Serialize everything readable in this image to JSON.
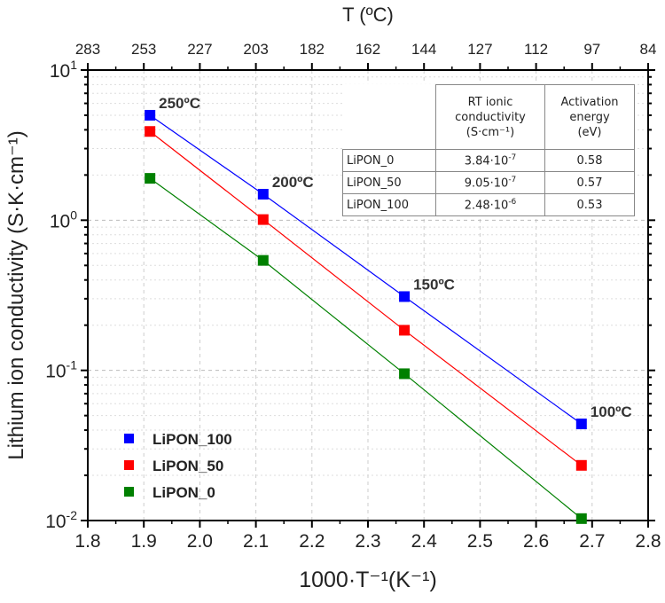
{
  "chart_data": {
    "type": "scatter",
    "title": "",
    "xlabel": "1000·T⁻¹(K⁻¹)",
    "ylabel": "Lithium ion conductivity (S·K·cm⁻¹)",
    "top_xlabel": "T (ºC)",
    "xlim": [
      1.8,
      2.8
    ],
    "ylim": [
      0.01,
      10
    ],
    "yscale": "log",
    "grid": true,
    "x_ticks": [
      "1.8",
      "1.9",
      "2.0",
      "2.1",
      "2.2",
      "2.3",
      "2.4",
      "2.5",
      "2.6",
      "2.7",
      "2.8"
    ],
    "top_ticks": [
      "283",
      "253",
      "227",
      "203",
      "182",
      "162",
      "144",
      "127",
      "112",
      "97",
      "84"
    ],
    "y_ticks": [
      {
        "base": "10",
        "exp": "1"
      },
      {
        "base": "10",
        "exp": "0"
      },
      {
        "base": "10",
        "exp": "-1"
      },
      {
        "base": "10",
        "exp": "-2"
      }
    ],
    "x": [
      1.911,
      2.113,
      2.365,
      2.681
    ],
    "series": [
      {
        "name": "LiPON_100",
        "color": "#0000ff",
        "values": [
          5.0,
          1.49,
          0.31,
          0.044
        ]
      },
      {
        "name": "LiPON_50",
        "color": "#ff0000",
        "values": [
          3.9,
          1.01,
          0.185,
          0.0233
        ]
      },
      {
        "name": "LiPON_0",
        "color": "#008000",
        "values": [
          1.9,
          0.54,
          0.095,
          0.0103
        ]
      }
    ],
    "annotations": [
      "250ºC",
      "200ºC",
      "150ºC",
      "100ºC"
    ],
    "legend_placement": "bottom-left"
  },
  "table": {
    "headers": [
      "RT ionic conductivity (S·cm⁻¹)",
      "Activation energy (eV)"
    ],
    "header_lines": [
      [
        "RT ionic",
        "conductivity",
        "(S·cm⁻¹)"
      ],
      [
        "Activation",
        "energy",
        "(eV)"
      ]
    ],
    "rows": [
      {
        "name": "LiPON_0",
        "cond_mant": "3.84·10",
        "cond_exp": "-7",
        "ea": "0.58"
      },
      {
        "name": "LiPON_50",
        "cond_mant": "9.05·10",
        "cond_exp": "-7",
        "ea": "0.57"
      },
      {
        "name": "LiPON_100",
        "cond_mant": "2.48·10",
        "cond_exp": "-6",
        "ea": "0.53"
      }
    ]
  }
}
